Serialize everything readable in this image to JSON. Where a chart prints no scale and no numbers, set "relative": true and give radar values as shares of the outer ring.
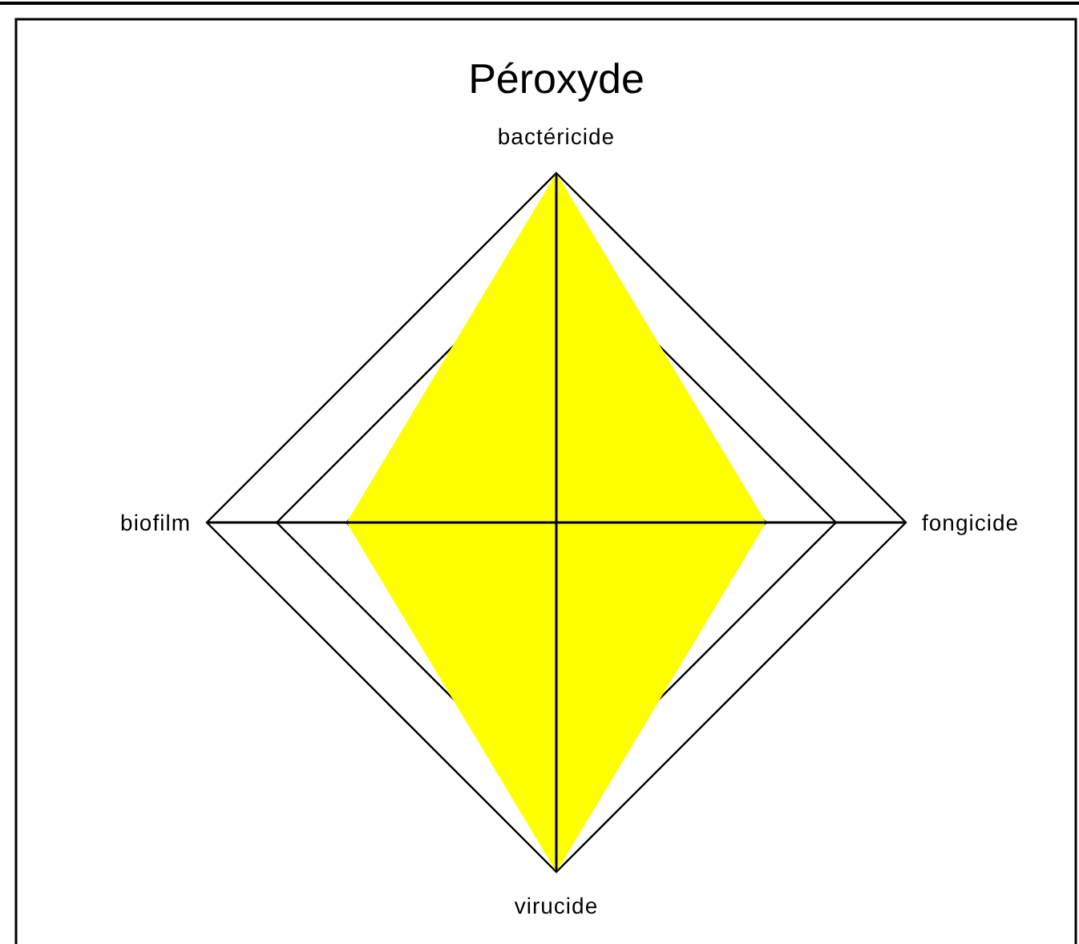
{
  "chart_data": {
    "type": "radar",
    "title": "Péroxyde",
    "categories": [
      "bactéricide",
      "fongicide",
      "virucide",
      "biofilm"
    ],
    "relative": true,
    "grid": true,
    "series": [
      {
        "color": "#ffff00",
        "values": [
          1,
          0.6,
          1,
          0.6
        ]
      }
    ]
  }
}
